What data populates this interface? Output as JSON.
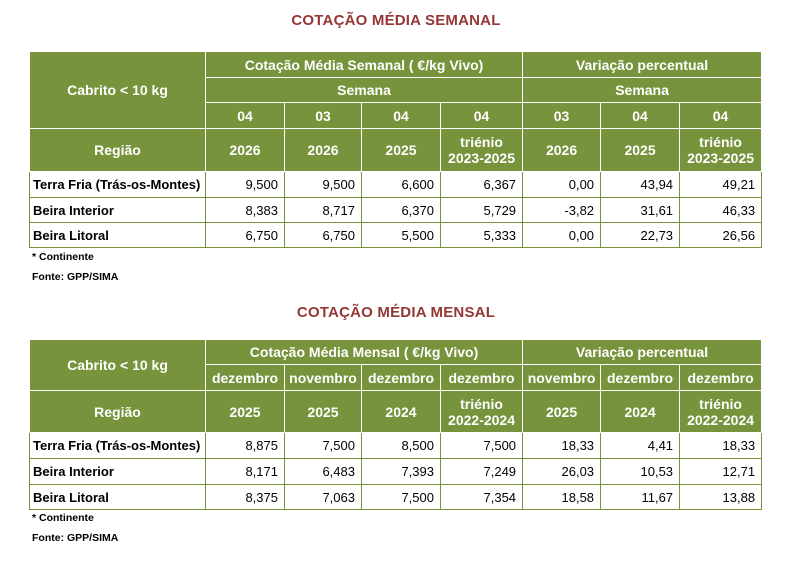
{
  "weekly": {
    "title": "COTAÇÃO MÉDIA SEMANAL",
    "corner_label": "Cabrito < 10 kg",
    "region_label": "Região",
    "group1": "Cotação Média Semanal ( €/kg Vivo)",
    "group2": "Variação percentual",
    "sub1": "Semana",
    "sub2": "Semana",
    "cols_top": [
      "04",
      "03",
      "04",
      "04",
      "03",
      "04",
      "04"
    ],
    "cols_bottom": [
      "2026",
      "2026",
      "2025",
      "triénio\n2023-2025",
      "2026",
      "2025",
      "triénio\n2023-2025"
    ],
    "rows": [
      {
        "region": "Terra Fria (Trás-os-Montes)",
        "values": [
          "9,500",
          "9,500",
          "6,600",
          "6,367",
          "0,00",
          "43,94",
          "49,21"
        ]
      },
      {
        "region": "Beira Interior",
        "values": [
          "8,383",
          "8,717",
          "6,370",
          "5,729",
          "-3,82",
          "31,61",
          "46,33"
        ]
      },
      {
        "region": "Beira Litoral",
        "values": [
          "6,750",
          "6,750",
          "5,500",
          "5,333",
          "0,00",
          "22,73",
          "26,56"
        ]
      }
    ],
    "note": "* Continente",
    "source": "Fonte: GPP/SIMA"
  },
  "monthly": {
    "title": "COTAÇÃO MÉDIA MENSAL",
    "corner_label": "Cabrito < 10 kg",
    "region_label": "Região",
    "group1": "Cotação Média Mensal ( €/kg Vivo)",
    "group2": "Variação percentual",
    "cols_top": [
      "dezembro",
      "novembro",
      "dezembro",
      "dezembro",
      "novembro",
      "dezembro",
      "dezembro"
    ],
    "cols_bottom": [
      "2025",
      "2025",
      "2024",
      "triénio\n2022-2024",
      "2025",
      "2024",
      "triénio\n2022-2024"
    ],
    "rows": [
      {
        "region": "Terra Fria (Trás-os-Montes)",
        "values": [
          "8,875",
          "7,500",
          "8,500",
          "7,500",
          "18,33",
          "4,41",
          "18,33"
        ]
      },
      {
        "region": "Beira Interior",
        "values": [
          "8,171",
          "6,483",
          "7,393",
          "7,249",
          "26,03",
          "10,53",
          "12,71"
        ]
      },
      {
        "region": "Beira Litoral",
        "values": [
          "8,375",
          "7,063",
          "7,500",
          "7,354",
          "18,58",
          "11,67",
          "13,88"
        ]
      }
    ],
    "note": "* Continente",
    "source": "Fonte: GPP/SIMA"
  }
}
